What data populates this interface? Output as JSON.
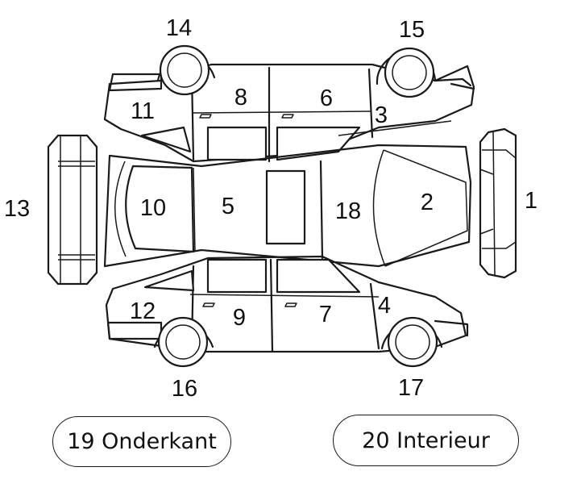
{
  "zones": {
    "z1": "1",
    "z2": "2",
    "z3": "3",
    "z4": "4",
    "z5": "5",
    "z6": "6",
    "z7": "7",
    "z8": "8",
    "z9": "9",
    "z10": "10",
    "z11": "11",
    "z12": "12",
    "z13": "13",
    "z14": "14",
    "z15": "15",
    "z16": "16",
    "z17": "17",
    "z18": "18"
  },
  "buttons": {
    "underside": "19 Onderkant",
    "interior": "20 Interieur"
  }
}
